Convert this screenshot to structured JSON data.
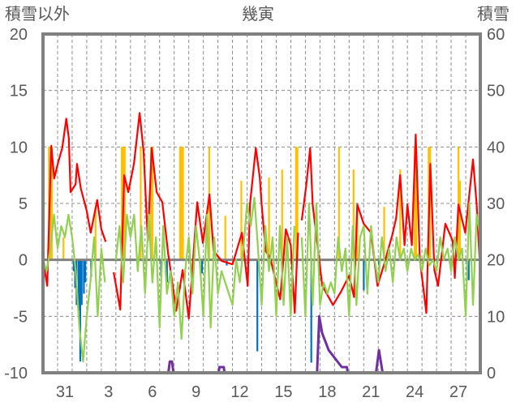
{
  "chart_data": {
    "type": "line",
    "title": "幾寅",
    "ylabel_left": "積雪以外",
    "ylabel_right": "積雪",
    "ylim_left": [
      -10,
      20
    ],
    "ylim_right": [
      0,
      60
    ],
    "yticks_left": [
      "20",
      "15",
      "10",
      "5",
      "0",
      "-5",
      "-10"
    ],
    "yticks_right": [
      "60",
      "50",
      "40",
      "30",
      "20",
      "10",
      "0"
    ],
    "xlim_days": [
      0,
      30
    ],
    "xticks": [
      {
        "day": 1.5,
        "label": "31"
      },
      {
        "day": 4.5,
        "label": "3"
      },
      {
        "day": 7.5,
        "label": "6"
      },
      {
        "day": 10.5,
        "label": "9"
      },
      {
        "day": 13.5,
        "label": "12"
      },
      {
        "day": 16.5,
        "label": "15"
      },
      {
        "day": 19.5,
        "label": "18"
      },
      {
        "day": 22.5,
        "label": "21"
      },
      {
        "day": 25.5,
        "label": "24"
      },
      {
        "day": 28.5,
        "label": "27"
      }
    ],
    "grid": {
      "horizontal": true,
      "vertical_daily": true,
      "style": "dashed"
    },
    "colors": {
      "red": "#ff0000",
      "green": "#92d050",
      "orange": "#ffc000",
      "blue": "#0070c0",
      "purple": "#7030a0",
      "frame": "#808080"
    },
    "series_red": [
      [
        0,
        0
      ],
      [
        0.29,
        -2.3
      ],
      [
        0.57,
        10.1
      ],
      [
        0.77,
        7.2
      ],
      [
        1.05,
        8.7
      ],
      [
        1.32,
        9.9
      ],
      [
        1.6,
        12.5
      ],
      [
        1.77,
        10.8
      ],
      [
        1.89,
        6.0
      ],
      [
        2.24,
        6.7
      ],
      [
        2.33,
        8.5
      ],
      [
        2.6,
        6.3
      ],
      [
        2.99,
        4.4
      ],
      [
        3.27,
        2.4
      ],
      [
        3.55,
        4.2
      ],
      [
        3.72,
        5.3
      ],
      [
        4.0,
        2.7
      ],
      [
        4.3,
        1.6
      ],
      null,
      [
        4.85,
        -1.1
      ],
      [
        5.3,
        -4.4
      ],
      [
        5.57,
        7.5
      ],
      [
        5.85,
        6.0
      ],
      [
        6.24,
        8.5
      ],
      [
        6.63,
        13.0
      ],
      [
        6.9,
        9.6
      ],
      [
        7.19,
        1.7
      ],
      [
        7.46,
        9.9
      ],
      [
        7.8,
        6.0
      ],
      [
        8.19,
        5.1
      ],
      [
        8.58,
        0.6
      ],
      [
        9.14,
        -4.5
      ],
      [
        9.58,
        -0.9
      ],
      [
        10.0,
        -5.2
      ],
      [
        10.58,
        5.1
      ],
      [
        10.97,
        1.5
      ],
      [
        11.42,
        5.8
      ],
      [
        11.7,
        0.8
      ],
      [
        12.26,
        -0.1
      ],
      [
        13.0,
        -0.4
      ],
      [
        13.65,
        2.4
      ],
      [
        14.04,
        -2.3
      ],
      [
        14.2,
        4.9
      ],
      [
        14.6,
        9.9
      ],
      [
        14.87,
        7.3
      ],
      [
        15.0,
        4.9
      ],
      [
        15.27,
        0.8
      ],
      [
        15.6,
        0.1
      ],
      [
        16.27,
        -3.5
      ],
      [
        16.66,
        2.7
      ],
      [
        17.0,
        1.3
      ],
      [
        17.27,
        -4.7
      ],
      [
        17.5,
        2.4
      ],
      null,
      [
        17.75,
        3.5
      ],
      [
        18.05,
        6.5
      ],
      [
        18.33,
        9.9
      ],
      [
        18.5,
        4.9
      ],
      [
        19.16,
        -2.3
      ],
      [
        19.9,
        -4.0
      ],
      [
        20.45,
        -2.8
      ],
      [
        21.0,
        -1.4
      ],
      [
        21.34,
        -3.3
      ],
      [
        21.56,
        4.9
      ],
      [
        22.0,
        3.2
      ],
      [
        22.5,
        2.4
      ],
      [
        22.95,
        -2.3
      ],
      [
        23.4,
        -0.4
      ],
      [
        23.96,
        2.2
      ],
      [
        24.23,
        3.7
      ],
      [
        24.5,
        7.5
      ],
      [
        24.8,
        1.3
      ],
      [
        25.0,
        4.9
      ],
      [
        25.3,
        1.3
      ],
      [
        25.57,
        11.1
      ],
      [
        25.85,
        0.1
      ],
      [
        26.3,
        -4.7
      ],
      [
        26.57,
        8.5
      ],
      [
        26.85,
        -0.9
      ],
      [
        27.1,
        -2.3
      ],
      [
        27.6,
        3.2
      ],
      [
        28.1,
        1.7
      ],
      [
        28.25,
        -1.6
      ],
      [
        28.5,
        4.9
      ],
      [
        28.97,
        2.4
      ],
      [
        29.5,
        8.9
      ],
      [
        29.75,
        4.9
      ],
      [
        30.0,
        -1.1
      ]
    ],
    "series_green_step_days": 0.25,
    "series_green": [
      0,
      -1,
      1,
      4,
      1,
      3,
      2,
      4,
      2,
      -1,
      -6,
      -9,
      -5,
      -2,
      2,
      -5,
      1,
      -2,
      null,
      null,
      0,
      3,
      -2,
      4,
      2,
      4,
      -1,
      3,
      -3,
      4,
      -2,
      2,
      -6,
      3,
      -3,
      -1,
      -5,
      -2,
      -7,
      -1,
      2,
      -3,
      3,
      0,
      -5,
      4,
      -6,
      2,
      -3,
      -1,
      -2,
      -3,
      -4,
      0,
      -2,
      1,
      5,
      3,
      5.5,
      1,
      -4,
      3,
      -1,
      2,
      -5,
      3,
      -4,
      2,
      -5,
      3,
      null,
      2,
      -5,
      5,
      -4,
      5,
      -4,
      -2,
      -3,
      -2,
      -3,
      2,
      -1,
      1,
      -5,
      3,
      -4,
      2,
      3,
      -3,
      3,
      0,
      -2,
      2,
      -1,
      1,
      -2,
      2,
      0,
      1,
      -1,
      1,
      0,
      0.5,
      -1,
      1,
      -0.5,
      0,
      -1,
      2,
      0,
      1,
      -1,
      2,
      0,
      1,
      -5,
      5,
      -4,
      4,
      2
    ],
    "bars_orange": [
      [
        0.4,
        10
      ],
      [
        0.5,
        10
      ],
      [
        0.6,
        10
      ],
      [
        1.4,
        2
      ],
      [
        3.6,
        4.7
      ],
      [
        5.4,
        10
      ],
      [
        5.5,
        10
      ],
      [
        5.6,
        10
      ],
      [
        6.7,
        10
      ],
      [
        7.4,
        10
      ],
      [
        7.5,
        10
      ],
      [
        9.4,
        10
      ],
      [
        9.5,
        10
      ],
      [
        9.6,
        10
      ],
      [
        11.4,
        10
      ],
      [
        12.5,
        3.9
      ],
      [
        13.6,
        7.0
      ],
      [
        15.5,
        7.3
      ],
      [
        16.4,
        8
      ],
      [
        17.35,
        10
      ],
      [
        17.45,
        10
      ],
      [
        20.3,
        10
      ],
      [
        21.3,
        8
      ],
      [
        21.55,
        4.5
      ],
      [
        23.4,
        4.7
      ],
      [
        24.5,
        8
      ],
      [
        25.5,
        10
      ],
      [
        25.6,
        10
      ],
      [
        26.45,
        10
      ],
      [
        26.55,
        10
      ],
      [
        28.5,
        10
      ],
      [
        28.6,
        7
      ]
    ],
    "bars_blue": [
      [
        2.1,
        -1
      ],
      [
        2.2,
        -2.5
      ],
      [
        2.3,
        -4
      ],
      [
        2.45,
        -4.5
      ],
      [
        2.55,
        -9
      ],
      [
        2.65,
        -4
      ],
      [
        2.8,
        -3
      ],
      [
        2.9,
        -2
      ],
      [
        3.3,
        -1.5
      ],
      [
        8.1,
        -1.5
      ],
      [
        8.5,
        -2
      ],
      [
        10.9,
        -1.2
      ],
      [
        12.6,
        -0.5
      ],
      [
        14.7,
        -8.1
      ],
      [
        18.4,
        -9.1
      ],
      [
        22.0,
        -2.7
      ],
      [
        23.05,
        -0.5
      ],
      [
        29.1,
        -1
      ],
      [
        29.2,
        -1.8
      ]
    ],
    "series_purple_right": [
      [
        0,
        0
      ],
      [
        4.3,
        0
      ],
      null,
      [
        4.85,
        0
      ],
      [
        8.6,
        0
      ],
      [
        8.7,
        2
      ],
      [
        8.85,
        2
      ],
      [
        8.95,
        0
      ],
      [
        12.05,
        0
      ],
      [
        12.1,
        1
      ],
      [
        12.4,
        1
      ],
      [
        12.45,
        0
      ],
      [
        17.5,
        0
      ],
      null,
      [
        17.75,
        0
      ],
      [
        18.8,
        0
      ],
      [
        18.95,
        10
      ],
      [
        19.15,
        7
      ],
      [
        19.45,
        5
      ],
      [
        19.6,
        4
      ],
      [
        19.9,
        3
      ],
      [
        20.2,
        2
      ],
      [
        20.5,
        1
      ],
      [
        20.85,
        1
      ],
      [
        20.9,
        0
      ],
      [
        22.85,
        0
      ],
      [
        23.05,
        4
      ],
      [
        23.3,
        0
      ],
      [
        30,
        0
      ]
    ]
  }
}
